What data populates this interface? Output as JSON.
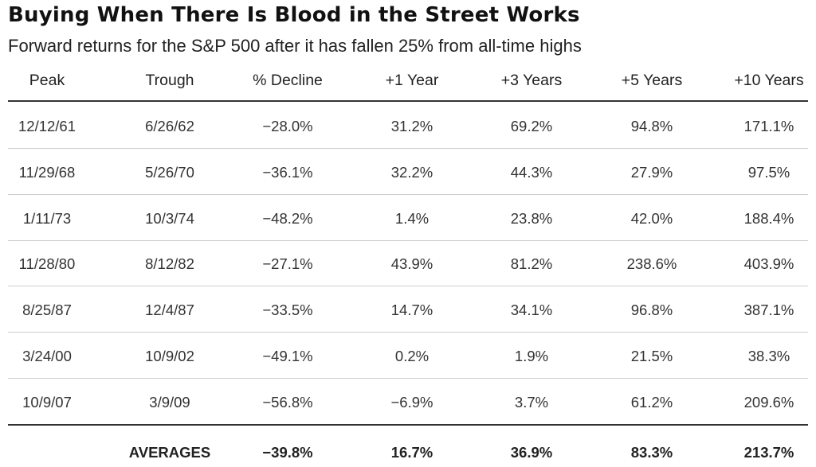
{
  "title": "Buying When There Is Blood in the Street Works",
  "subtitle": "Forward returns for the S&P 500 after it has fallen 25% from all-time highs",
  "chart_data": {
    "type": "table",
    "columns": [
      "Peak",
      "Trough",
      "% Decline",
      "+1 Year",
      "+3 Years",
      "+5 Years",
      "+10 Years"
    ],
    "rows": [
      [
        "12/12/61",
        "6/26/62",
        "−28.0%",
        "31.2%",
        "69.2%",
        "94.8%",
        "171.1%"
      ],
      [
        "11/29/68",
        "5/26/70",
        "−36.1%",
        "32.2%",
        "44.3%",
        "27.9%",
        "97.5%"
      ],
      [
        "1/11/73",
        "10/3/74",
        "−48.2%",
        "1.4%",
        "23.8%",
        "42.0%",
        "188.4%"
      ],
      [
        "11/28/80",
        "8/12/82",
        "−27.1%",
        "43.9%",
        "81.2%",
        "238.6%",
        "403.9%"
      ],
      [
        "8/25/87",
        "12/4/87",
        "−33.5%",
        "14.7%",
        "34.1%",
        "96.8%",
        "387.1%"
      ],
      [
        "3/24/00",
        "10/9/02",
        "−49.1%",
        "0.2%",
        "1.9%",
        "21.5%",
        "38.3%"
      ],
      [
        "10/9/07",
        "3/9/09",
        "−56.8%",
        "−6.9%",
        "3.7%",
        "61.2%",
        "209.6%"
      ]
    ],
    "averages": {
      "label": "AVERAGES",
      "values": [
        "−39.8%",
        "16.7%",
        "36.9%",
        "83.3%",
        "213.7%"
      ]
    }
  },
  "colors": {
    "text": "#222222",
    "rule_light": "#cccccc",
    "rule_dark": "#333333"
  }
}
